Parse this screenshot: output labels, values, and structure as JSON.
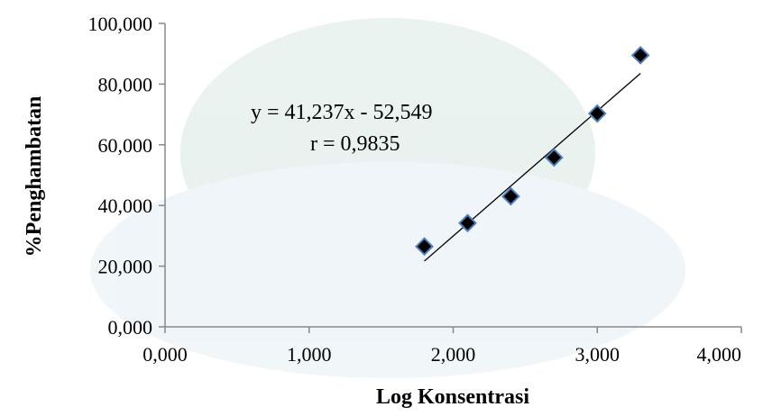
{
  "chart_data": {
    "type": "scatter",
    "xlabel": "Log Konsentrasi",
    "ylabel": "%Penghambatan",
    "xlim": [
      0,
      4
    ],
    "ylim": [
      0,
      100
    ],
    "x_ticks": [
      "0,000",
      "1,000",
      "2,000",
      "3,000",
      "4,000"
    ],
    "y_ticks": [
      "0,000",
      "20,000",
      "40,000",
      "60,000",
      "80,000",
      "100,000"
    ],
    "grid": false,
    "points": [
      {
        "x": 1.8,
        "y": 26.5
      },
      {
        "x": 2.1,
        "y": 34.2
      },
      {
        "x": 2.4,
        "y": 43.0
      },
      {
        "x": 2.7,
        "y": 55.8
      },
      {
        "x": 3.0,
        "y": 70.3
      },
      {
        "x": 3.3,
        "y": 89.5
      }
    ],
    "trendline": {
      "slope": 41.237,
      "intercept": -52.549,
      "x_range": [
        1.8,
        3.3
      ]
    },
    "annotations": {
      "equation": "y = 41,237x  - 52,549",
      "r_value": "r = 0,9835"
    },
    "colors": {
      "marker_fill": "#000000",
      "marker_stroke": "#4f81bd",
      "line": "#000000"
    }
  }
}
